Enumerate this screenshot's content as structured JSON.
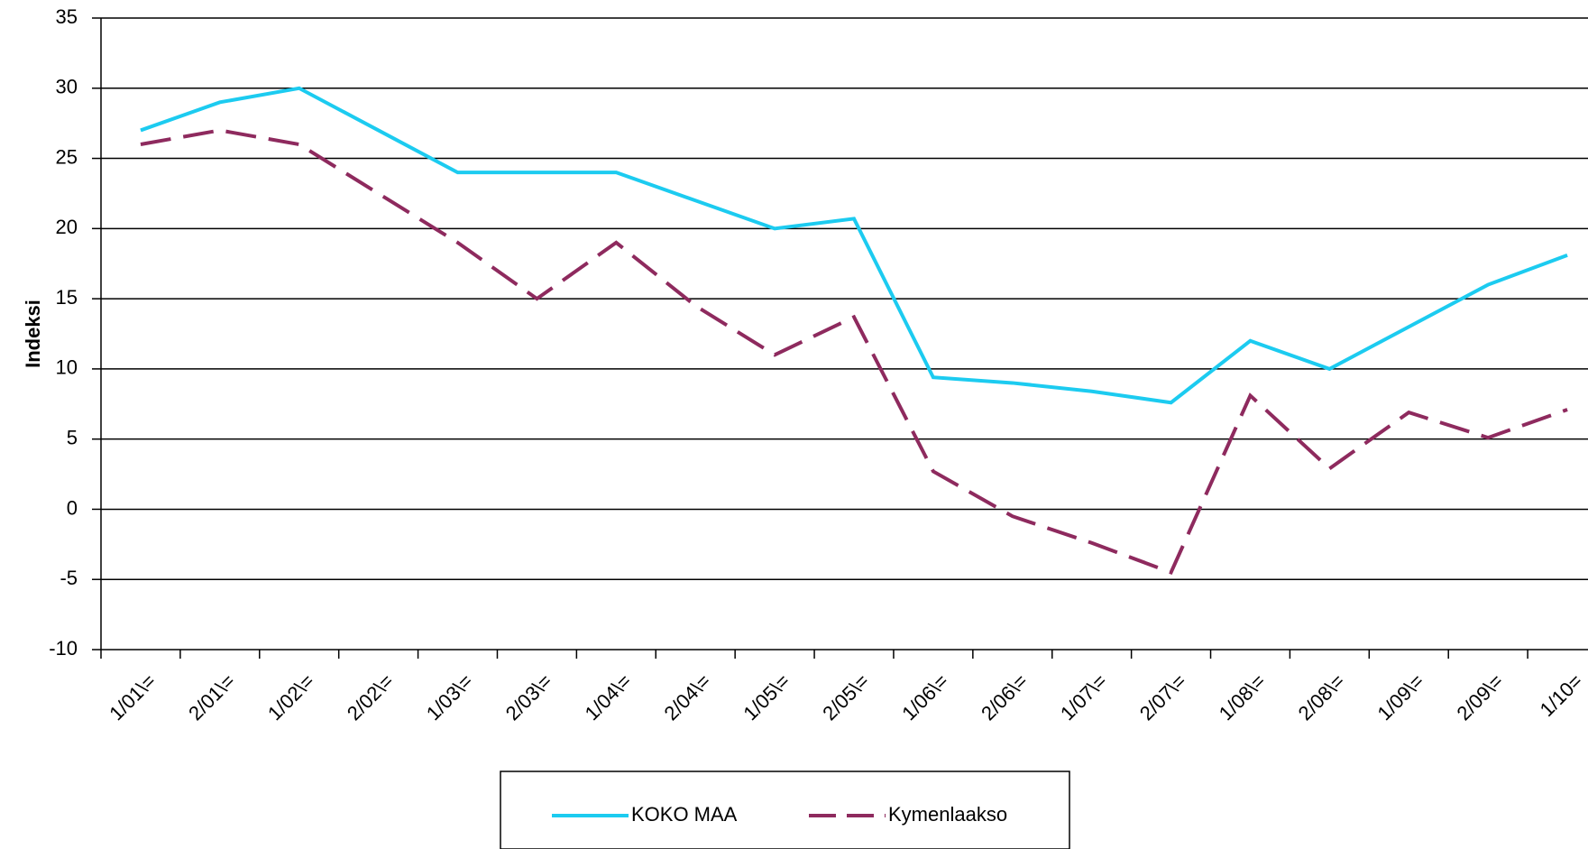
{
  "chart_data": {
    "type": "line",
    "y_label": "Indeksi",
    "categories": [
      "1/01\\=",
      "2/01\\=",
      "1/02\\=",
      "2/02\\=",
      "1/03\\=",
      "2/03\\=",
      "1/04\\=",
      "2/04\\=",
      "1/05\\=",
      "2/05\\=",
      "1/06\\=",
      "2/06\\=",
      "1/07\\=",
      "2/07\\=",
      "1/08\\=",
      "2/08\\=",
      "1/09\\=",
      "2/09\\=",
      "1/10="
    ],
    "series": [
      {
        "name": "KOKO MAA",
        "color": "#1ccbf0",
        "dash": false,
        "values": [
          27,
          29,
          30,
          27,
          24,
          24,
          24,
          22,
          20,
          20.7,
          9.4,
          9,
          8.4,
          7.6,
          12,
          10,
          13,
          16,
          18.1
        ]
      },
      {
        "name": "Kymenlaakso",
        "color": "#8e2a5e",
        "dash": true,
        "values": [
          26,
          27,
          26,
          22.5,
          19,
          15,
          19,
          14.5,
          11,
          13.7,
          2.7,
          -0.5,
          -2.4,
          -4.5,
          8.1,
          2.9,
          6.9,
          5.1,
          7.1
        ]
      }
    ],
    "ylim": [
      -10,
      35
    ],
    "yticks": [
      -10,
      -5,
      0,
      5,
      10,
      15,
      20,
      25,
      30,
      35
    ],
    "grid": true
  }
}
